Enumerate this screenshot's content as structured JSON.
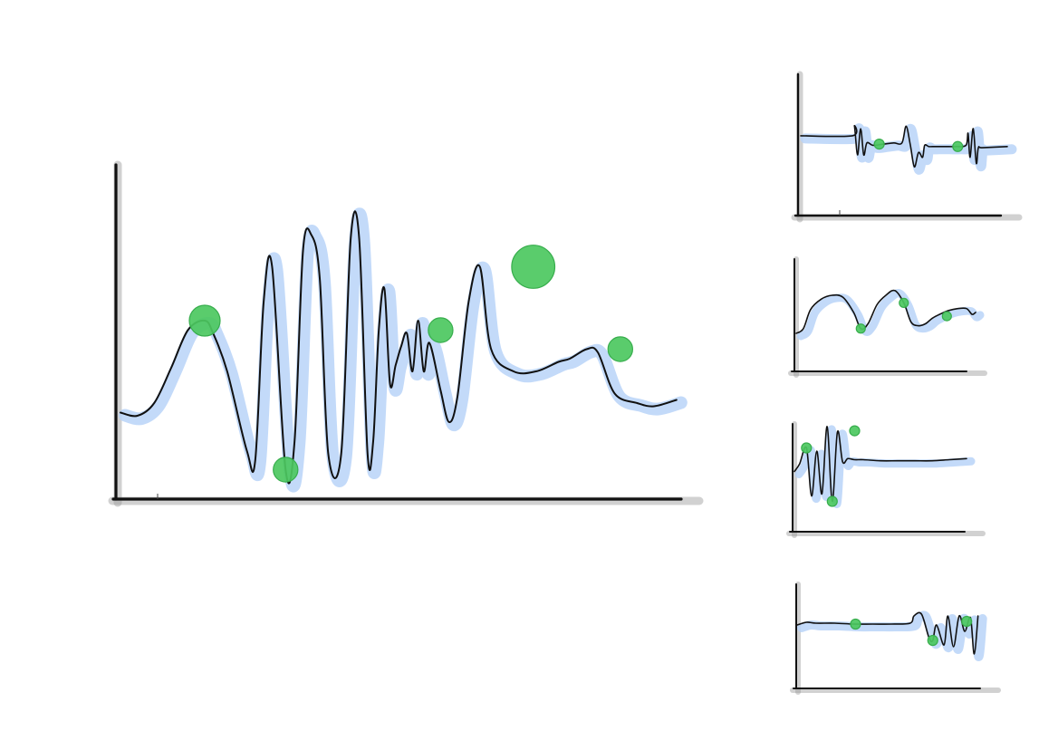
{
  "colors": {
    "background": "#ffffff",
    "line": "#111111",
    "halo": "#b8d3f8",
    "marker": "#4cc860",
    "marker_stroke": "#37ad4c",
    "axis_shadow": "#9a9a9a"
  },
  "chart_data": [
    {
      "type": "line",
      "panel": "main",
      "title": "",
      "xlabel": "",
      "ylabel": "",
      "grid": false,
      "legend": "none",
      "xlim": [
        0,
        100
      ],
      "ylim": [
        0,
        100
      ],
      "x": [
        0,
        3,
        6,
        9,
        12,
        15,
        16.5,
        19,
        22.5,
        24,
        25.5,
        27,
        29.4,
        31,
        32.5,
        34,
        35.5,
        37,
        39.3,
        41,
        42.5,
        44,
        45,
        46,
        47,
        48,
        49,
        50,
        51,
        52,
        53,
        54,
        55,
        57,
        58.5,
        60,
        62,
        64,
        66,
        70,
        74,
        78,
        80,
        83,
        85,
        88,
        92,
        95,
        99
      ],
      "y": [
        27,
        26,
        30,
        41,
        53,
        56,
        52,
        40,
        15,
        12,
        62,
        73,
        9,
        18,
        78,
        83,
        69,
        14,
        14,
        82,
        82,
        14,
        18,
        53,
        66,
        36,
        42,
        48,
        52,
        40,
        56,
        40,
        49,
        34,
        24,
        32,
        62,
        73,
        47,
        40,
        40,
        43,
        44,
        47,
        46,
        33,
        30,
        29,
        31
      ],
      "highlights": [
        {
          "x": 15,
          "y": 56,
          "size": 1.0
        },
        {
          "x": 29.4,
          "y": 9,
          "size": 0.8
        },
        {
          "x": 57,
          "y": 53,
          "size": 0.8
        },
        {
          "x": 73.5,
          "y": 73,
          "size": 1.4
        },
        {
          "x": 89,
          "y": 47,
          "size": 0.8
        }
      ]
    },
    {
      "type": "line",
      "panel": "small-1",
      "title": "",
      "xlabel": "",
      "ylabel": "",
      "grid": false,
      "legend": "none",
      "xlim": [
        0,
        100
      ],
      "ylim": [
        0,
        100
      ],
      "x": [
        0,
        25,
        26,
        27.5,
        29,
        30.5,
        32,
        35,
        40,
        45,
        49,
        51,
        53,
        55,
        57,
        59,
        60,
        62,
        65,
        70,
        75,
        80,
        81,
        82,
        83.5,
        85,
        86,
        88,
        100
      ],
      "y": [
        66,
        66,
        74,
        50,
        72,
        50,
        60,
        58,
        59,
        60,
        60,
        74,
        59,
        40,
        52,
        48,
        58,
        57,
        57,
        57,
        57,
        58,
        68,
        48,
        72,
        43,
        56,
        56,
        57
      ],
      "highlights": [
        {
          "x": 38,
          "y": 59,
          "size": 1.0
        },
        {
          "x": 76,
          "y": 57,
          "size": 1.0
        }
      ]
    },
    {
      "type": "line",
      "panel": "small-2",
      "title": "",
      "xlabel": "",
      "ylabel": "",
      "grid": false,
      "legend": "none",
      "xlim": [
        0,
        100
      ],
      "ylim": [
        0,
        100
      ],
      "x": [
        0,
        4,
        8,
        14,
        20,
        26,
        32,
        36,
        40,
        45,
        50,
        55,
        60,
        64,
        68,
        72,
        76,
        80,
        85,
        90,
        95,
        98,
        100
      ],
      "y": [
        40,
        45,
        65,
        76,
        80,
        78,
        62,
        45,
        50,
        70,
        80,
        85,
        72,
        52,
        48,
        50,
        56,
        60,
        64,
        66,
        66,
        60,
        62
      ],
      "highlights": [
        {
          "x": 36,
          "y": 45,
          "size": 1.0
        },
        {
          "x": 60,
          "y": 72,
          "size": 1.0
        },
        {
          "x": 84,
          "y": 58,
          "size": 1.0
        }
      ]
    },
    {
      "type": "line",
      "panel": "small-3",
      "title": "",
      "xlabel": "",
      "ylabel": "",
      "grid": false,
      "legend": "none",
      "xlim": [
        0,
        100
      ],
      "ylim": [
        0,
        100
      ],
      "x": [
        0,
        3,
        7,
        10,
        13,
        16,
        19,
        22,
        25,
        28,
        31,
        35,
        40,
        50,
        60,
        70,
        80,
        90,
        100
      ],
      "y": [
        53,
        60,
        75,
        30,
        72,
        32,
        95,
        25,
        90,
        62,
        65,
        64,
        64,
        63,
        63,
        63,
        63,
        64,
        65
      ],
      "highlights": [
        {
          "x": 7,
          "y": 75,
          "size": 1.0
        },
        {
          "x": 22,
          "y": 25,
          "size": 1.0
        },
        {
          "x": 35,
          "y": 91,
          "size": 1.0
        }
      ]
    },
    {
      "type": "line",
      "panel": "small-4",
      "title": "",
      "xlabel": "",
      "ylabel": "",
      "grid": false,
      "legend": "none",
      "xlim": [
        0,
        100
      ],
      "ylim": [
        0,
        100
      ],
      "x": [
        0,
        5,
        10,
        20,
        30,
        40,
        50,
        60,
        62,
        66,
        70,
        72,
        74,
        78,
        80,
        83,
        86,
        89,
        92,
        94,
        96
      ],
      "y": [
        62,
        65,
        64,
        64,
        63,
        63,
        63,
        64,
        72,
        74,
        48,
        45,
        62,
        40,
        72,
        38,
        72,
        55,
        70,
        30,
        72
      ],
      "highlights": [
        {
          "x": 31,
          "y": 63,
          "size": 1.0
        },
        {
          "x": 72,
          "y": 45,
          "size": 1.0
        },
        {
          "x": 90,
          "y": 66,
          "size": 1.0
        }
      ]
    }
  ]
}
